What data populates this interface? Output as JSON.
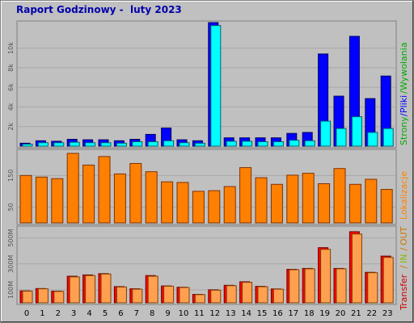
{
  "title": "Raport Godzinowy -  luty 2023",
  "colors": {
    "background": "#c0c0c0",
    "strony": "#0000ff",
    "pliki": "#00ffff",
    "wizyty_label": "#00aa00",
    "lokalizacje": "#ff8000",
    "transfer_in": "#ff0000",
    "transfer_out": "#ffb060",
    "transfer_label_out": "#cc7700"
  },
  "side_labels": {
    "top": {
      "strony": "Strony",
      "sep1": "/",
      "pliki": "Pliki",
      "sep2": "/",
      "wywolania": "Wywołania"
    },
    "middle": "Lokalizacje",
    "bottom": {
      "transfer": "Transfer",
      "sep1": " / ",
      "in": "IN",
      "sep2": " / ",
      "out": "OUT"
    }
  },
  "chart_data": [
    {
      "type": "bar",
      "title": "Strony/Pliki/Wywołania",
      "categories": [
        "0",
        "1",
        "2",
        "3",
        "4",
        "5",
        "6",
        "7",
        "8",
        "9",
        "10",
        "11",
        "12",
        "13",
        "14",
        "15",
        "16",
        "17",
        "18",
        "19",
        "20",
        "21",
        "22",
        "23"
      ],
      "ylim": [
        0,
        12600
      ],
      "yticks": [
        {
          "value": 2000,
          "label": "2k"
        },
        {
          "value": 4000,
          "label": "4k"
        },
        {
          "value": 6000,
          "label": "6k"
        },
        {
          "value": 8000,
          "label": "8k"
        },
        {
          "value": 10000,
          "label": "10k"
        }
      ],
      "series": [
        {
          "name": "Wywołania",
          "values": [
            300,
            550,
            500,
            700,
            650,
            650,
            550,
            700,
            1200,
            1850,
            650,
            550,
            12600,
            850,
            850,
            850,
            850,
            1300,
            1400,
            9400,
            5100,
            11200,
            4850,
            7150
          ]
        },
        {
          "name": "Pliki",
          "values": [
            200,
            350,
            350,
            400,
            350,
            350,
            300,
            450,
            450,
            550,
            350,
            300,
            12300,
            500,
            500,
            450,
            450,
            600,
            550,
            2550,
            1800,
            3000,
            1400,
            1800
          ]
        }
      ]
    },
    {
      "type": "bar",
      "title": "Lokalizacje",
      "categories": [
        "0",
        "1",
        "2",
        "3",
        "4",
        "5",
        "6",
        "7",
        "8",
        "9",
        "10",
        "11",
        "12",
        "13",
        "14",
        "15",
        "16",
        "17",
        "18",
        "19",
        "20",
        "21",
        "22",
        "23"
      ],
      "ylim": [
        0,
        225
      ],
      "yticks": [
        {
          "value": 50,
          "label": "50"
        },
        {
          "value": 150,
          "label": "150"
        }
      ],
      "series": [
        {
          "name": "Lokalizacje",
          "values": [
            150,
            145,
            140,
            220,
            183,
            210,
            155,
            188,
            162,
            130,
            128,
            100,
            102,
            115,
            175,
            143,
            122,
            151,
            157,
            124,
            172,
            122,
            138,
            106
          ]
        }
      ]
    },
    {
      "type": "bar",
      "title": "Transfer / IN / OUT",
      "categories": [
        "0",
        "1",
        "2",
        "3",
        "4",
        "5",
        "6",
        "7",
        "8",
        "9",
        "10",
        "11",
        "12",
        "13",
        "14",
        "15",
        "16",
        "17",
        "18",
        "19",
        "20",
        "21",
        "22",
        "23"
      ],
      "ylim": [
        0,
        560
      ],
      "yticks": [
        {
          "value": 100,
          "label": "100M"
        },
        {
          "value": 300,
          "label": "300M"
        },
        {
          "value": 500,
          "label": "500M"
        }
      ],
      "series": [
        {
          "name": "IN",
          "values": [
            92,
            110,
            90,
            205,
            215,
            225,
            125,
            108,
            210,
            130,
            120,
            65,
            100,
            135,
            162,
            127,
            107,
            258,
            265,
            425,
            265,
            548,
            235,
            360
          ]
        },
        {
          "name": "OUT",
          "values": [
            90,
            108,
            88,
            200,
            210,
            222,
            122,
            105,
            205,
            128,
            118,
            63,
            97,
            132,
            158,
            124,
            105,
            255,
            262,
            412,
            262,
            530,
            232,
            350
          ]
        }
      ]
    }
  ]
}
